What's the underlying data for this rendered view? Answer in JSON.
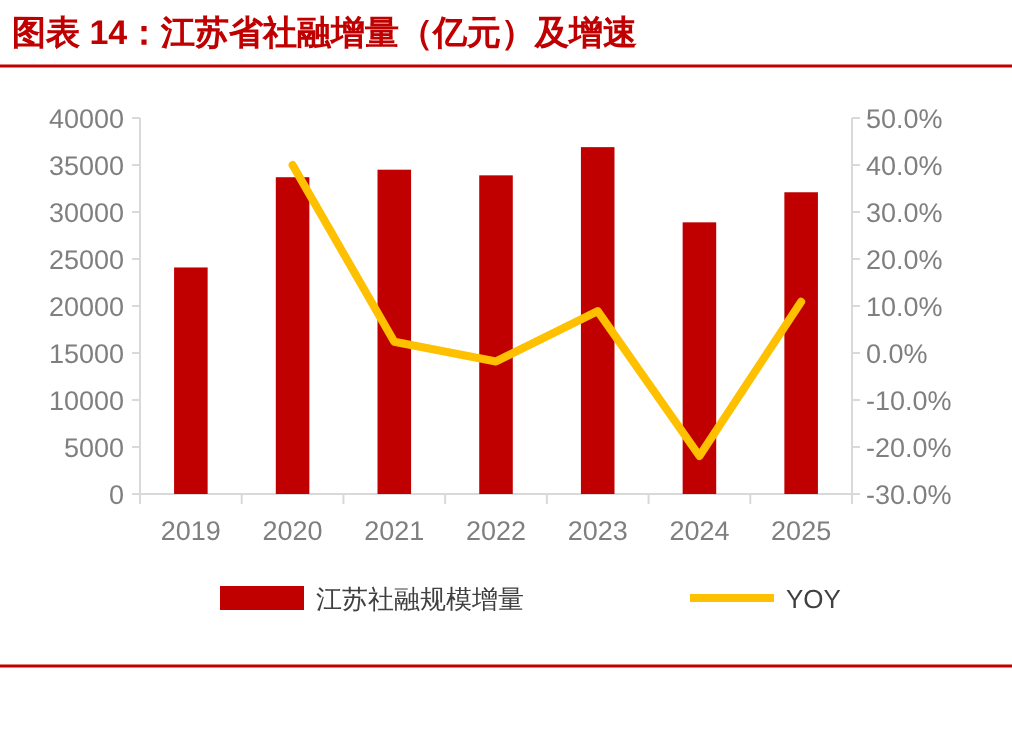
{
  "chart_data": {
    "type": "bar",
    "title": "图表 14：江苏省社融增量（亿元）及增速",
    "categories": [
      "2019",
      "2020",
      "2021",
      "2022",
      "2023",
      "2024",
      "2025"
    ],
    "series": [
      {
        "name": "江苏社融规模增量",
        "color": "#c00000",
        "values": [
          24100,
          33700,
          34500,
          33900,
          36900,
          28900,
          32100
        ]
      },
      {
        "name": "YOY",
        "type": "line",
        "axis": "y2",
        "color": "#ffc000",
        "values": [
          null,
          40.0,
          2.4,
          -1.8,
          8.9,
          -21.9,
          10.9
        ]
      }
    ],
    "ylim": [
      0,
      40000
    ],
    "yticks": [
      0,
      5000,
      10000,
      15000,
      20000,
      25000,
      30000,
      35000,
      40000
    ],
    "y2lim": [
      -30,
      50
    ],
    "y2ticks": [
      {
        "value": -30,
        "label": "-30.0%"
      },
      {
        "value": -20,
        "label": "-20.0%"
      },
      {
        "value": -10,
        "label": "-10.0%"
      },
      {
        "value": 0,
        "label": "0.0%"
      },
      {
        "value": 10,
        "label": "10.0%"
      },
      {
        "value": 20,
        "label": "20.0%"
      },
      {
        "value": 30,
        "label": "30.0%"
      },
      {
        "value": 40,
        "label": "40.0%"
      },
      {
        "value": 50,
        "label": "50.0%"
      }
    ],
    "legend": "bottom",
    "grid": false,
    "marker": "none",
    "line_style": "solid"
  }
}
